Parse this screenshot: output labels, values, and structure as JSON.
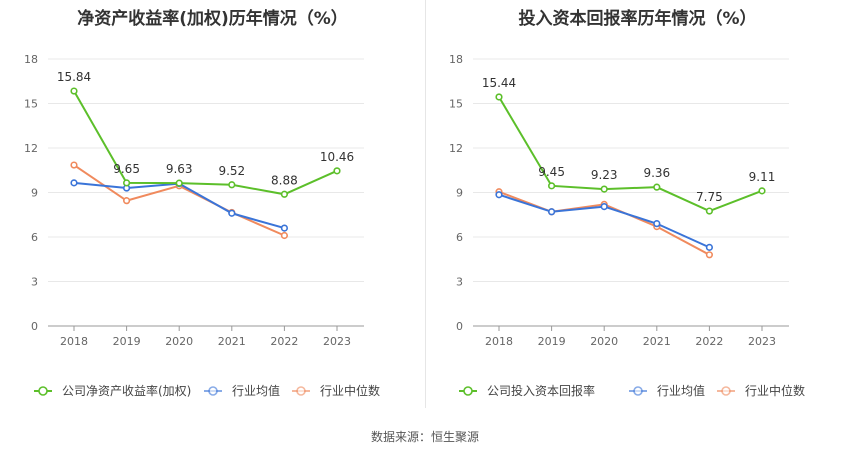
{
  "source_label": "数据来源：恒生聚源",
  "colors": {
    "company": "#5cbf2a",
    "average": "#3a74d8",
    "median": "#f08a5d",
    "grid": "#e8e8e8",
    "axis": "#999999",
    "tick": "#666666"
  },
  "chart_data": [
    {
      "type": "line",
      "title": "净资产收益率(加权)历年情况（%）",
      "categories": [
        "2018",
        "2019",
        "2020",
        "2021",
        "2022",
        "2023"
      ],
      "ylim": [
        0,
        18
      ],
      "yticks": [
        0,
        3,
        6,
        9,
        12,
        15,
        18
      ],
      "grid": true,
      "legend_position": "bottom",
      "series": [
        {
          "name": "公司净资产收益率(加权)",
          "values": [
            15.84,
            9.65,
            9.63,
            9.52,
            8.88,
            10.46
          ],
          "labels": [
            "15.84",
            "9.65",
            "9.63",
            "9.52",
            "8.88",
            "10.46"
          ]
        },
        {
          "name": "行业均值",
          "values": [
            9.65,
            9.3,
            9.6,
            7.6,
            6.6,
            null
          ]
        },
        {
          "name": "行业中位数",
          "values": [
            10.85,
            8.45,
            9.45,
            7.65,
            6.1,
            null
          ]
        }
      ]
    },
    {
      "type": "line",
      "title": "投入资本回报率历年情况（%）",
      "categories": [
        "2018",
        "2019",
        "2020",
        "2021",
        "2022",
        "2023"
      ],
      "ylim": [
        0,
        18
      ],
      "yticks": [
        0,
        3,
        6,
        9,
        12,
        15,
        18
      ],
      "grid": true,
      "legend_position": "bottom",
      "series": [
        {
          "name": "公司投入资本回报率",
          "values": [
            15.44,
            9.45,
            9.23,
            9.36,
            7.75,
            9.11
          ],
          "labels": [
            "15.44",
            "9.45",
            "9.23",
            "9.36",
            "7.75",
            "9.11"
          ]
        },
        {
          "name": "行业均值",
          "values": [
            8.85,
            7.7,
            8.05,
            6.9,
            5.3,
            null
          ]
        },
        {
          "name": "行业中位数",
          "values": [
            9.05,
            7.7,
            8.2,
            6.7,
            4.8,
            null
          ]
        }
      ]
    }
  ]
}
